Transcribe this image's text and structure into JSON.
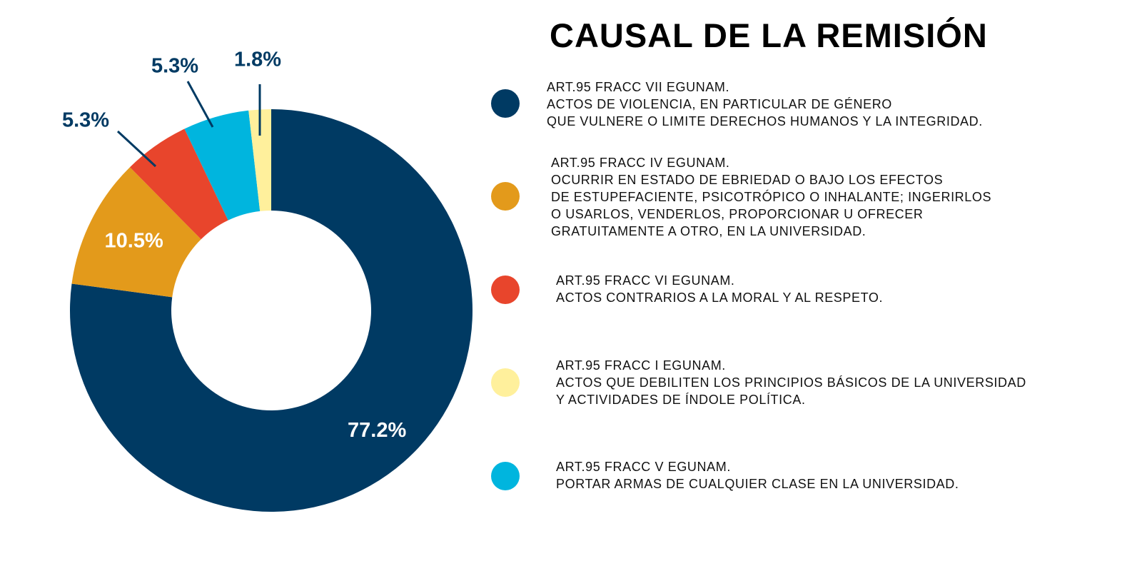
{
  "title": "CAUSAL DE LA REMISIÓN",
  "chart_data": {
    "type": "pie",
    "donut": true,
    "title": "CAUSAL DE LA REMISIÓN",
    "legend_placement": "right",
    "slices": [
      {
        "label": "77.2%",
        "value": 77.2,
        "color": "#003a63"
      },
      {
        "label": "10.5%",
        "value": 10.5,
        "color": "#e39a1b"
      },
      {
        "label": "5.3%",
        "value": 5.3,
        "color": "#e8452c"
      },
      {
        "label": "5.3%",
        "value": 5.3,
        "color": "#00b5de"
      },
      {
        "label": "1.8%",
        "value": 1.8,
        "color": "#fff09c"
      }
    ]
  },
  "legend": [
    {
      "color": "#003a63",
      "lines": [
        "ART.95 FRACC VII EGUNAM.",
        "ACTOS DE VIOLENCIA, EN PARTICULAR DE GÉNERO",
        "QUE VULNERE O LIMITE DERECHOS HUMANOS Y LA INTEGRIDAD."
      ]
    },
    {
      "color": "#e39a1b",
      "lines": [
        "ART.95 FRACC IV EGUNAM.",
        "OCURRIR EN ESTADO DE EBRIEDAD O BAJO LOS EFECTOS",
        "DE ESTUPEFACIENTE, PSICOTRÓPICO O INHALANTE; INGERIRLOS",
        "O USARLOS, VENDERLOS, PROPORCIONAR U OFRECER",
        "GRATUITAMENTE A OTRO, EN LA UNIVERSIDAD."
      ]
    },
    {
      "color": "#e8452c",
      "lines": [
        "ART.95 FRACC VI EGUNAM.",
        "ACTOS CONTRARIOS A LA MORAL Y AL RESPETO."
      ]
    },
    {
      "color": "#fff09c",
      "lines": [
        "ART.95 FRACC I EGUNAM.",
        "ACTOS QUE DEBILITEN LOS PRINCIPIOS BÁSICOS DE LA UNIVERSIDAD",
        "Y ACTIVIDADES DE ÍNDOLE POLÍTICA."
      ]
    },
    {
      "color": "#00b5de",
      "lines": [
        "ART.95 FRACC V EGUNAM.",
        "PORTAR ARMAS DE CUALQUIER CLASE EN LA UNIVERSIDAD."
      ]
    }
  ]
}
